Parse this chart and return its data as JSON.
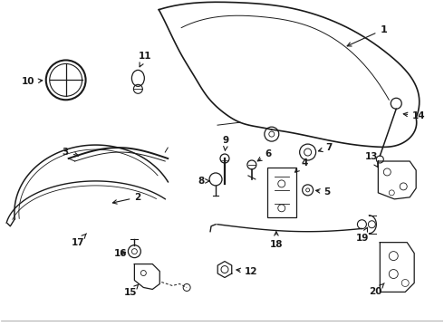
{
  "bg_color": "#ffffff",
  "line_color": "#1a1a1a",
  "text_color": "#1a1a1a",
  "fig_width": 4.9,
  "fig_height": 3.6,
  "dpi": 100
}
